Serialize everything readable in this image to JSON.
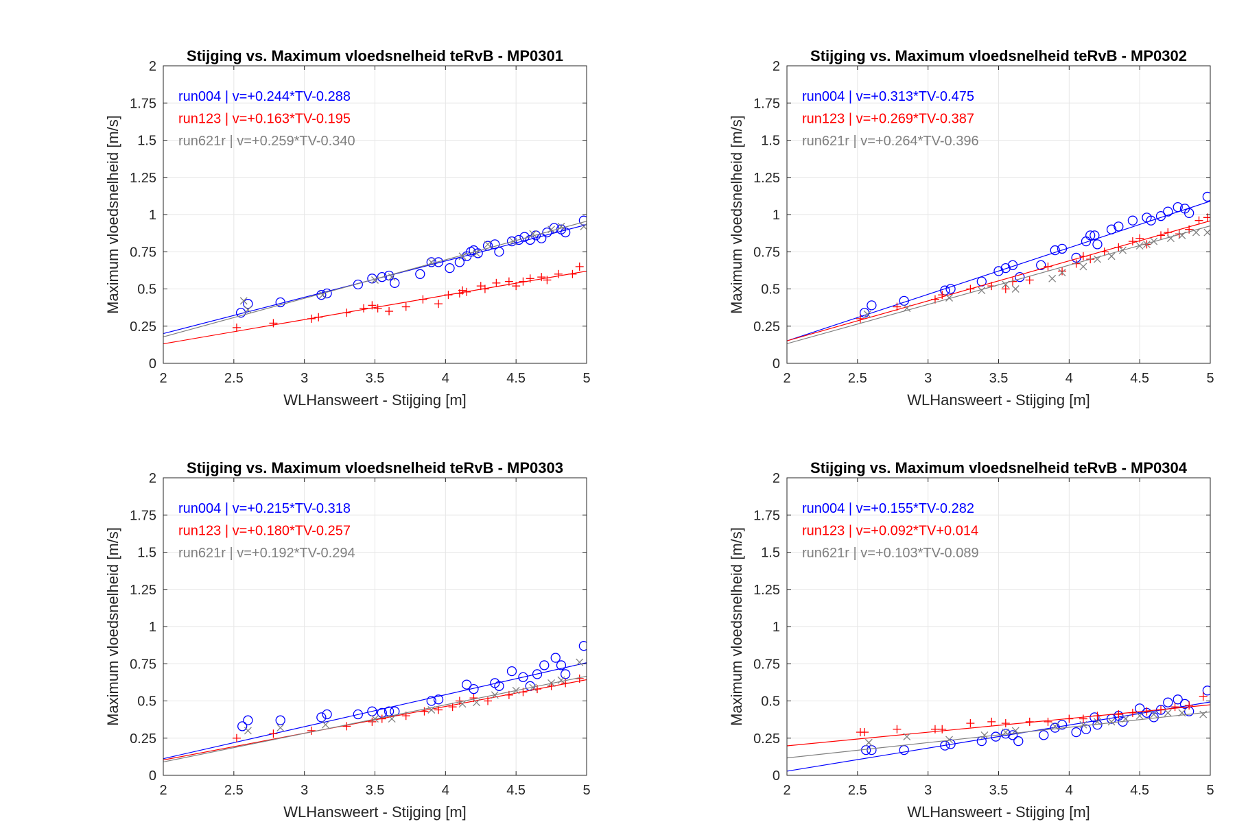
{
  "figure": {
    "background": "#ffffff"
  },
  "colors": {
    "run004": "#0000ff",
    "run123": "#ff0000",
    "run621r": "#808080",
    "grid": "#e6e6e6",
    "axis": "#262626"
  },
  "chart_data": [
    {
      "type": "scatter",
      "title": "Stijging vs. Maximum vloedsnelheid teRvB - MP0301",
      "xlabel": "WLHansweert - Stijging [m]",
      "ylabel": "Maximum vloedsnelheid [m/s]",
      "xlim": [
        2,
        5
      ],
      "ylim": [
        0,
        2
      ],
      "xticks": [
        "2",
        "2.5",
        "3",
        "3.5",
        "4",
        "4.5",
        "5"
      ],
      "yticks": [
        "0",
        "0.25",
        "0.5",
        "0.75",
        "1",
        "1.25",
        "1.5",
        "1.75",
        "2"
      ],
      "grid": true,
      "legend_placement": "top-left",
      "series": [
        {
          "name": "run004 | v=+0.244*TV-0.288",
          "color": "#0000ff",
          "marker": "circle",
          "fit": {
            "slope": 0.244,
            "intercept": -0.288
          },
          "x": [
            2.55,
            2.6,
            2.83,
            3.12,
            3.16,
            3.38,
            3.48,
            3.55,
            3.6,
            3.64,
            3.82,
            3.9,
            3.95,
            4.03,
            4.1,
            4.15,
            4.18,
            4.2,
            4.23,
            4.3,
            4.35,
            4.38,
            4.47,
            4.52,
            4.56,
            4.6,
            4.64,
            4.68,
            4.72,
            4.77,
            4.82,
            4.85,
            4.98
          ],
          "y": [
            0.34,
            0.4,
            0.41,
            0.46,
            0.47,
            0.53,
            0.57,
            0.58,
            0.59,
            0.54,
            0.6,
            0.68,
            0.68,
            0.64,
            0.68,
            0.72,
            0.75,
            0.76,
            0.74,
            0.79,
            0.8,
            0.75,
            0.82,
            0.83,
            0.85,
            0.83,
            0.86,
            0.84,
            0.88,
            0.91,
            0.9,
            0.88,
            0.96
          ]
        },
        {
          "name": "run123 | v=+0.163*TV-0.195",
          "color": "#ff0000",
          "marker": "plus",
          "fit": {
            "slope": 0.163,
            "intercept": -0.195
          },
          "x": [
            2.52,
            2.78,
            3.05,
            3.1,
            3.3,
            3.42,
            3.48,
            3.52,
            3.6,
            3.72,
            3.84,
            3.95,
            4.02,
            4.1,
            4.12,
            4.15,
            4.25,
            4.28,
            4.36,
            4.45,
            4.5,
            4.55,
            4.6,
            4.68,
            4.72,
            4.8,
            4.9,
            4.95
          ],
          "y": [
            0.24,
            0.27,
            0.3,
            0.31,
            0.34,
            0.37,
            0.39,
            0.37,
            0.35,
            0.38,
            0.43,
            0.4,
            0.46,
            0.47,
            0.49,
            0.48,
            0.52,
            0.5,
            0.54,
            0.55,
            0.52,
            0.55,
            0.57,
            0.58,
            0.56,
            0.6,
            0.6,
            0.65
          ]
        },
        {
          "name": "run621r | v=+0.259*TV-0.340",
          "color": "#808080",
          "marker": "x",
          "fit": {
            "slope": 0.259,
            "intercept": -0.34
          },
          "x": [
            2.57,
            2.6,
            3.13,
            3.5,
            3.62,
            3.9,
            4.12,
            4.22,
            4.3,
            4.48,
            4.62,
            4.75,
            4.82,
            4.98
          ],
          "y": [
            0.42,
            0.36,
            0.46,
            0.56,
            0.58,
            0.68,
            0.72,
            0.74,
            0.8,
            0.82,
            0.87,
            0.9,
            0.92,
            0.92
          ]
        }
      ]
    },
    {
      "type": "scatter",
      "title": "Stijging vs. Maximum vloedsnelheid teRvB - MP0302",
      "xlabel": "WLHansweert - Stijging [m]",
      "ylabel": "Maximum vloedsnelheid [m/s]",
      "xlim": [
        2,
        5
      ],
      "ylim": [
        0,
        2
      ],
      "xticks": [
        "2",
        "2.5",
        "3",
        "3.5",
        "4",
        "4.5",
        "5"
      ],
      "yticks": [
        "0",
        "0.25",
        "0.5",
        "0.75",
        "1",
        "1.25",
        "1.5",
        "1.75",
        "2"
      ],
      "grid": true,
      "legend_placement": "top-left",
      "series": [
        {
          "name": "run004 | v=+0.313*TV-0.475",
          "color": "#0000ff",
          "marker": "circle",
          "fit": {
            "slope": 0.313,
            "intercept": -0.475
          },
          "x": [
            2.55,
            2.6,
            2.83,
            3.12,
            3.16,
            3.38,
            3.5,
            3.55,
            3.6,
            3.65,
            3.8,
            3.9,
            3.95,
            4.05,
            4.12,
            4.15,
            4.18,
            4.2,
            4.3,
            4.35,
            4.45,
            4.55,
            4.58,
            4.65,
            4.7,
            4.77,
            4.82,
            4.85,
            4.98
          ],
          "y": [
            0.34,
            0.39,
            0.42,
            0.49,
            0.5,
            0.55,
            0.62,
            0.64,
            0.66,
            0.58,
            0.66,
            0.76,
            0.77,
            0.71,
            0.82,
            0.86,
            0.86,
            0.8,
            0.9,
            0.92,
            0.96,
            0.98,
            0.96,
            0.99,
            1.02,
            1.05,
            1.04,
            1.01,
            1.12
          ]
        },
        {
          "name": "run123 | v=+0.269*TV-0.387",
          "color": "#ff0000",
          "marker": "plus",
          "fit": {
            "slope": 0.269,
            "intercept": -0.387
          },
          "x": [
            2.52,
            2.78,
            3.05,
            3.1,
            3.3,
            3.45,
            3.55,
            3.6,
            3.72,
            3.85,
            3.95,
            4.05,
            4.1,
            4.15,
            4.25,
            4.35,
            4.45,
            4.5,
            4.55,
            4.65,
            4.7,
            4.78,
            4.85,
            4.92,
            4.98
          ],
          "y": [
            0.3,
            0.38,
            0.43,
            0.46,
            0.5,
            0.52,
            0.5,
            0.55,
            0.56,
            0.65,
            0.62,
            0.67,
            0.72,
            0.7,
            0.75,
            0.78,
            0.82,
            0.84,
            0.8,
            0.86,
            0.88,
            0.87,
            0.9,
            0.96,
            0.98
          ]
        },
        {
          "name": "run621r | v=+0.264*TV-0.396",
          "color": "#808080",
          "marker": "x",
          "fit": {
            "slope": 0.264,
            "intercept": -0.396
          },
          "x": [
            2.57,
            2.85,
            3.15,
            3.38,
            3.55,
            3.62,
            3.88,
            3.95,
            4.1,
            4.2,
            4.3,
            4.38,
            4.5,
            4.55,
            4.6,
            4.72,
            4.8,
            4.9,
            4.98
          ],
          "y": [
            0.33,
            0.37,
            0.44,
            0.49,
            0.53,
            0.5,
            0.57,
            0.61,
            0.65,
            0.7,
            0.72,
            0.76,
            0.79,
            0.8,
            0.82,
            0.84,
            0.86,
            0.88,
            0.88
          ]
        }
      ]
    },
    {
      "type": "scatter",
      "title": "Stijging vs. Maximum vloedsnelheid teRvB - MP0303",
      "xlabel": "WLHansweert - Stijging [m]",
      "ylabel": "Maximum vloedsnelheid [m/s]",
      "xlim": [
        2,
        5
      ],
      "ylim": [
        0,
        2
      ],
      "xticks": [
        "2",
        "2.5",
        "3",
        "3.5",
        "4",
        "4.5",
        "5"
      ],
      "yticks": [
        "0",
        "0.25",
        "0.5",
        "0.75",
        "1",
        "1.25",
        "1.5",
        "1.75",
        "2"
      ],
      "grid": true,
      "legend_placement": "top-left",
      "series": [
        {
          "name": "run004 | v=+0.215*TV-0.318",
          "color": "#0000ff",
          "marker": "circle",
          "fit": {
            "slope": 0.215,
            "intercept": -0.318
          },
          "x": [
            2.56,
            2.6,
            2.83,
            3.12,
            3.16,
            3.38,
            3.48,
            3.55,
            3.6,
            3.64,
            3.9,
            3.95,
            4.15,
            4.2,
            4.35,
            4.38,
            4.47,
            4.55,
            4.6,
            4.65,
            4.7,
            4.78,
            4.82,
            4.85,
            4.98
          ],
          "y": [
            0.33,
            0.37,
            0.37,
            0.39,
            0.41,
            0.41,
            0.43,
            0.42,
            0.43,
            0.43,
            0.5,
            0.51,
            0.61,
            0.58,
            0.62,
            0.6,
            0.7,
            0.66,
            0.6,
            0.68,
            0.74,
            0.79,
            0.74,
            0.68,
            0.87
          ]
        },
        {
          "name": "run123 | v=+0.180*TV-0.257",
          "color": "#ff0000",
          "marker": "plus",
          "fit": {
            "slope": 0.18,
            "intercept": -0.257
          },
          "x": [
            2.52,
            2.78,
            3.05,
            3.3,
            3.48,
            3.55,
            3.72,
            3.85,
            3.95,
            4.05,
            4.1,
            4.2,
            4.3,
            4.45,
            4.55,
            4.65,
            4.75,
            4.85,
            4.95
          ],
          "y": [
            0.25,
            0.28,
            0.3,
            0.33,
            0.36,
            0.38,
            0.4,
            0.43,
            0.44,
            0.46,
            0.5,
            0.52,
            0.5,
            0.54,
            0.56,
            0.58,
            0.6,
            0.62,
            0.65
          ]
        },
        {
          "name": "run621r | v=+0.192*TV-0.294",
          "color": "#808080",
          "marker": "x",
          "fit": {
            "slope": 0.192,
            "intercept": -0.294
          },
          "x": [
            2.6,
            2.83,
            3.15,
            3.5,
            3.62,
            3.9,
            4.12,
            4.22,
            4.35,
            4.5,
            4.62,
            4.75,
            4.82,
            4.95
          ],
          "y": [
            0.3,
            0.32,
            0.34,
            0.38,
            0.38,
            0.44,
            0.48,
            0.49,
            0.54,
            0.57,
            0.59,
            0.62,
            0.64,
            0.76
          ]
        }
      ]
    },
    {
      "type": "scatter",
      "title": "Stijging vs. Maximum vloedsnelheid teRvB - MP0304",
      "xlabel": "WLHansweert - Stijging [m]",
      "ylabel": "Maximum vloedsnelheid [m/s]",
      "xlim": [
        2,
        5
      ],
      "ylim": [
        0,
        2
      ],
      "xticks": [
        "2",
        "2.5",
        "3",
        "3.5",
        "4",
        "4.5",
        "5"
      ],
      "yticks": [
        "0",
        "0.25",
        "0.5",
        "0.75",
        "1",
        "1.25",
        "1.5",
        "1.75",
        "2"
      ],
      "grid": true,
      "legend_placement": "top-left",
      "series": [
        {
          "name": "run004 | v=+0.155*TV-0.282",
          "color": "#0000ff",
          "marker": "circle",
          "fit": {
            "slope": 0.155,
            "intercept": -0.282
          },
          "x": [
            2.56,
            2.6,
            2.83,
            3.12,
            3.16,
            3.38,
            3.48,
            3.55,
            3.6,
            3.64,
            3.82,
            3.9,
            3.95,
            4.05,
            4.12,
            4.18,
            4.2,
            4.3,
            4.35,
            4.38,
            4.5,
            4.55,
            4.6,
            4.65,
            4.7,
            4.77,
            4.82,
            4.85,
            4.98
          ],
          "y": [
            0.17,
            0.17,
            0.17,
            0.2,
            0.21,
            0.23,
            0.26,
            0.28,
            0.27,
            0.23,
            0.27,
            0.32,
            0.34,
            0.29,
            0.31,
            0.39,
            0.34,
            0.38,
            0.4,
            0.36,
            0.45,
            0.42,
            0.39,
            0.44,
            0.49,
            0.51,
            0.48,
            0.43,
            0.57
          ]
        },
        {
          "name": "run123 | v=+0.092*TV+0.014",
          "color": "#ff0000",
          "marker": "plus",
          "fit": {
            "slope": 0.092,
            "intercept": 0.014
          },
          "x": [
            2.52,
            2.55,
            2.78,
            3.05,
            3.1,
            3.3,
            3.45,
            3.55,
            3.72,
            3.85,
            4.0,
            4.1,
            4.2,
            4.35,
            4.45,
            4.55,
            4.65,
            4.75,
            4.85,
            4.95
          ],
          "y": [
            0.29,
            0.29,
            0.31,
            0.31,
            0.31,
            0.35,
            0.36,
            0.35,
            0.36,
            0.36,
            0.38,
            0.38,
            0.4,
            0.41,
            0.42,
            0.43,
            0.44,
            0.46,
            0.47,
            0.53
          ]
        },
        {
          "name": "run621r | v=+0.103*TV-0.089",
          "color": "#808080",
          "marker": "x",
          "fit": {
            "slope": 0.103,
            "intercept": -0.089
          },
          "x": [
            2.58,
            2.85,
            3.15,
            3.4,
            3.55,
            3.62,
            3.9,
            4.1,
            4.2,
            4.3,
            4.4,
            4.5,
            4.6,
            4.7,
            4.8,
            4.95
          ],
          "y": [
            0.22,
            0.26,
            0.24,
            0.27,
            0.29,
            0.3,
            0.33,
            0.34,
            0.36,
            0.36,
            0.38,
            0.4,
            0.41,
            0.42,
            0.42,
            0.41
          ]
        }
      ]
    }
  ]
}
